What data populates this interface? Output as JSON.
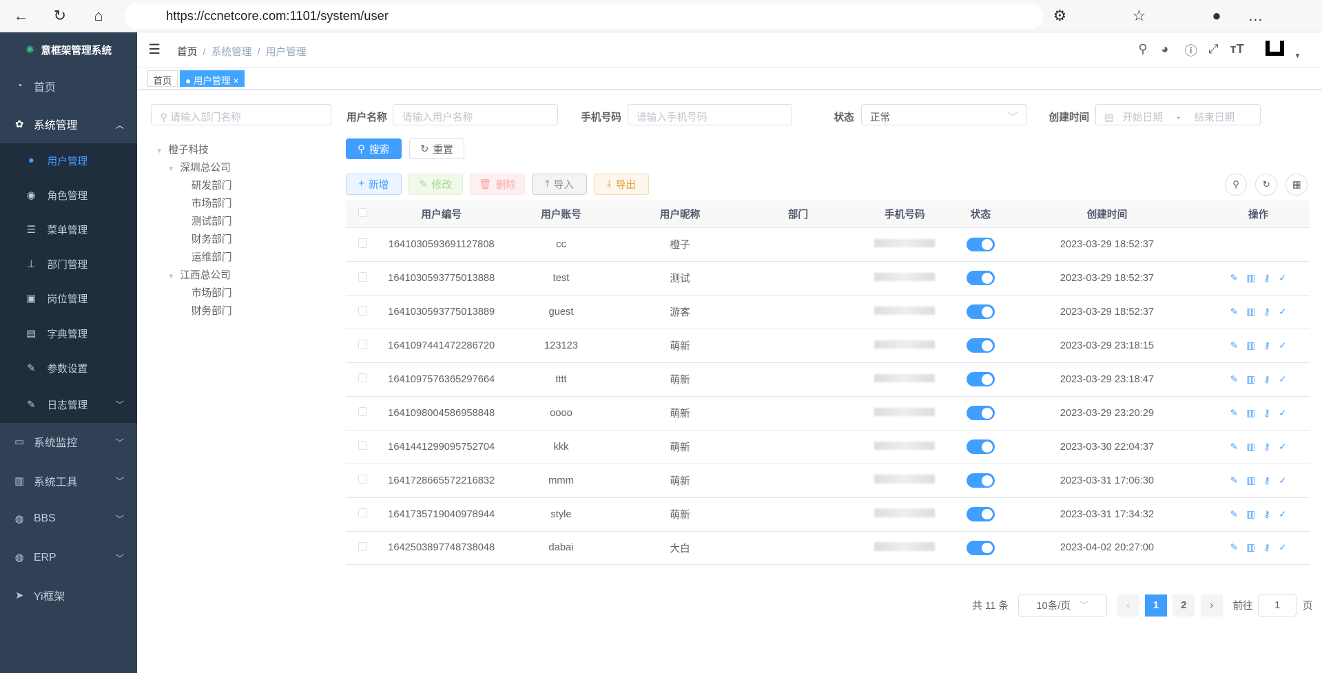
{
  "browser": {
    "url": "https://ccnetcore.com:1101/system/user"
  },
  "app": {
    "title": "意框架管理系统",
    "accent": "#409eff",
    "sidebar_bg": "#304156"
  },
  "sidebar": {
    "items": [
      {
        "label": "首页",
        "icon": "dashboard-icon"
      },
      {
        "label": "系统管理",
        "icon": "gear-icon",
        "expanded": true
      },
      {
        "label": "系统监控",
        "icon": "monitor-icon"
      },
      {
        "label": "系统工具",
        "icon": "toolbox-icon"
      },
      {
        "label": "BBS",
        "icon": "globe-icon"
      },
      {
        "label": "ERP",
        "icon": "globe-icon"
      },
      {
        "label": "Yi框架",
        "icon": "paper-plane-icon"
      }
    ],
    "sub_items": [
      {
        "label": "用户管理",
        "icon": "user-icon",
        "active": true
      },
      {
        "label": "角色管理",
        "icon": "peoples-icon"
      },
      {
        "label": "菜单管理",
        "icon": "tree-table-icon"
      },
      {
        "label": "部门管理",
        "icon": "tree-icon"
      },
      {
        "label": "岗位管理",
        "icon": "post-icon"
      },
      {
        "label": "字典管理",
        "icon": "dict-icon"
      },
      {
        "label": "参数设置",
        "icon": "edit-icon"
      },
      {
        "label": "日志管理",
        "icon": "log-icon"
      }
    ]
  },
  "breadcrumb": [
    "首页",
    "系统管理",
    "用户管理"
  ],
  "tags": [
    {
      "label": "首页"
    },
    {
      "label": "用户管理",
      "active": true
    }
  ],
  "dept": {
    "placeholder": "请输入部门名称",
    "tree": [
      {
        "label": "橙子科技",
        "level": 0
      },
      {
        "label": "深圳总公司",
        "level": 1
      },
      {
        "label": "研发部门",
        "level": 2
      },
      {
        "label": "市场部门",
        "level": 2
      },
      {
        "label": "测试部门",
        "level": 2
      },
      {
        "label": "财务部门",
        "level": 2
      },
      {
        "label": "运维部门",
        "level": 2
      },
      {
        "label": "江西总公司",
        "level": 1
      },
      {
        "label": "市场部门",
        "level": 2
      },
      {
        "label": "财务部门",
        "level": 2
      }
    ]
  },
  "form": {
    "username_label": "用户名称",
    "username_placeholder": "请输入用户名称",
    "phone_label": "手机号码",
    "phone_placeholder": "请输入手机号码",
    "status_label": "状态",
    "status_value": "正常",
    "created_label": "创建时间",
    "start_placeholder": "开始日期",
    "range_sep": "-",
    "end_placeholder": "结束日期",
    "search": "搜索",
    "reset": "重置"
  },
  "toolbar": {
    "add": "新增",
    "edit": "修改",
    "delete": "删除",
    "import": "导入",
    "export": "导出"
  },
  "table": {
    "headers": [
      "用户编号",
      "用户账号",
      "用户昵称",
      "部门",
      "手机号码",
      "状态",
      "创建时间",
      "操作"
    ],
    "rows": [
      {
        "id": "1641030593691127808",
        "account": "cc",
        "nick": "橙子",
        "created": "2023-03-29 18:52:37",
        "enabled": true,
        "actions": false
      },
      {
        "id": "1641030593775013888",
        "account": "test",
        "nick": "测试",
        "created": "2023-03-29 18:52:37",
        "enabled": true,
        "actions": true
      },
      {
        "id": "1641030593775013889",
        "account": "guest",
        "nick": "游客",
        "created": "2023-03-29 18:52:37",
        "enabled": true,
        "actions": true
      },
      {
        "id": "1641097441472286720",
        "account": "123123",
        "nick": "萌新",
        "created": "2023-03-29 23:18:15",
        "enabled": true,
        "actions": true
      },
      {
        "id": "1641097576365297664",
        "account": "tttt",
        "nick": "萌新",
        "created": "2023-03-29 23:18:47",
        "enabled": true,
        "actions": true
      },
      {
        "id": "1641098004586958848",
        "account": "oooo",
        "nick": "萌新",
        "created": "2023-03-29 23:20:29",
        "enabled": true,
        "actions": true
      },
      {
        "id": "1641441299095752704",
        "account": "kkk",
        "nick": "萌新",
        "created": "2023-03-30 22:04:37",
        "enabled": true,
        "actions": true
      },
      {
        "id": "1641728665572216832",
        "account": "mmm",
        "nick": "萌新",
        "created": "2023-03-31 17:06:30",
        "enabled": true,
        "actions": true
      },
      {
        "id": "1641735719040978944",
        "account": "style",
        "nick": "萌新",
        "created": "2023-03-31 17:34:32",
        "enabled": true,
        "actions": true
      },
      {
        "id": "1642503897748738048",
        "account": "dabai",
        "nick": "大白",
        "created": "2023-04-02 20:27:00",
        "enabled": true,
        "actions": true
      }
    ]
  },
  "pagination": {
    "total": "共 11 条",
    "page_size": "10条/页",
    "pages": [
      "1",
      "2"
    ],
    "current": "1",
    "goto_label": "前往",
    "goto_value": "1",
    "page_suffix": "页"
  }
}
